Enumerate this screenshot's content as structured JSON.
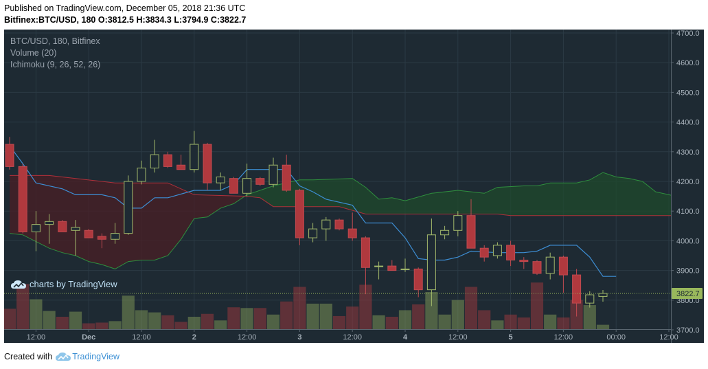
{
  "header": {
    "published": "Published on TradingView.com, December 05, 2018 21:36 UTC",
    "symbol": "Bitfinex:BTC/USD, 180",
    "o_label": "O:",
    "o_value": "3812.5",
    "h_label": "H:",
    "h_value": "3834.3",
    "l_label": "L:",
    "l_value": "3794.9",
    "c_label": "C:",
    "c_value": "3822.7"
  },
  "legend": {
    "line1": "BTC/USD, 180, Bitfinex",
    "line2": "Volume (20)",
    "line3": "Ichimoku (9, 26, 52, 26)"
  },
  "watermark": "charts by TradingView",
  "footer": {
    "created": "Created with",
    "brand": "TradingView"
  },
  "colors": {
    "background": "#1e2a33",
    "up": "#8da65a",
    "down": "#b0393e",
    "cloud_bull": "#1f4a2c",
    "cloud_bear": "#4a1f26",
    "conversion": "#3d8ed4",
    "last_price_tag": "#99b85c"
  },
  "chart_data": {
    "type": "candlestick",
    "y_axis": {
      "min": 3700,
      "max": 4700,
      "ticks": [
        4700,
        4600,
        4500,
        4400,
        4300,
        4200,
        4100,
        4000,
        3900,
        3800,
        3700
      ],
      "tick_labels": [
        "4700.0",
        "4600.0",
        "4500.0",
        "4400.0",
        "4300.0",
        "4200.0",
        "4100.0",
        "4000.0",
        "3900.0",
        "3800.0",
        "3700.0"
      ]
    },
    "x_axis": {
      "labels": [
        {
          "text": "12:00",
          "bar": 2
        },
        {
          "text": "Dec",
          "bar": 6
        },
        {
          "text": "12:00",
          "bar": 10
        },
        {
          "text": "2",
          "bar": 14
        },
        {
          "text": "12:00",
          "bar": 18
        },
        {
          "text": "3",
          "bar": 22
        },
        {
          "text": "12:00",
          "bar": 26
        },
        {
          "text": "4",
          "bar": 30
        },
        {
          "text": "12:00",
          "bar": 34
        },
        {
          "text": "5",
          "bar": 38
        },
        {
          "text": "12:00",
          "bar": 42
        },
        {
          "text": "00:00",
          "bar": 46
        },
        {
          "text": "12:00",
          "bar": 50
        }
      ]
    },
    "last_price": 3822.7,
    "candles": [
      {
        "o": 4325,
        "h": 4350,
        "l": 4240,
        "c": 4250,
        "v": 0.28
      },
      {
        "o": 4250,
        "h": 4260,
        "l": 4025,
        "c": 4030,
        "v": 0.62
      },
      {
        "o": 4030,
        "h": 4100,
        "l": 3965,
        "c": 4055,
        "v": 0.41
      },
      {
        "o": 4055,
        "h": 4090,
        "l": 3990,
        "c": 4065,
        "v": 0.25
      },
      {
        "o": 4065,
        "h": 4070,
        "l": 4030,
        "c": 4030,
        "v": 0.17
      },
      {
        "o": 4035,
        "h": 4070,
        "l": 3950,
        "c": 4045,
        "v": 0.24
      },
      {
        "o": 4035,
        "h": 4040,
        "l": 4010,
        "c": 4010,
        "v": 0.08
      },
      {
        "o": 4015,
        "h": 4025,
        "l": 3975,
        "c": 4005,
        "v": 0.09
      },
      {
        "o": 4005,
        "h": 4060,
        "l": 3990,
        "c": 4025,
        "v": 0.11
      },
      {
        "o": 4025,
        "h": 4220,
        "l": 4020,
        "c": 4200,
        "v": 0.46
      },
      {
        "o": 4200,
        "h": 4270,
        "l": 4190,
        "c": 4245,
        "v": 0.26
      },
      {
        "o": 4245,
        "h": 4340,
        "l": 4230,
        "c": 4290,
        "v": 0.23
      },
      {
        "o": 4290,
        "h": 4300,
        "l": 4245,
        "c": 4250,
        "v": 0.19
      },
      {
        "o": 4255,
        "h": 4290,
        "l": 4240,
        "c": 4240,
        "v": 0.1
      },
      {
        "o": 4240,
        "h": 4370,
        "l": 4230,
        "c": 4325,
        "v": 0.17
      },
      {
        "o": 4325,
        "h": 4330,
        "l": 4170,
        "c": 4195,
        "v": 0.21
      },
      {
        "o": 4195,
        "h": 4230,
        "l": 4170,
        "c": 4215,
        "v": 0.12
      },
      {
        "o": 4210,
        "h": 4215,
        "l": 4160,
        "c": 4160,
        "v": 0.3
      },
      {
        "o": 4160,
        "h": 4260,
        "l": 4150,
        "c": 4210,
        "v": 0.29
      },
      {
        "o": 4210,
        "h": 4215,
        "l": 4185,
        "c": 4190,
        "v": 0.29
      },
      {
        "o": 4190,
        "h": 4280,
        "l": 4180,
        "c": 4255,
        "v": 0.2
      },
      {
        "o": 4255,
        "h": 4290,
        "l": 4165,
        "c": 4170,
        "v": 0.38
      },
      {
        "o": 4170,
        "h": 4175,
        "l": 3985,
        "c": 4010,
        "v": 0.58
      },
      {
        "o": 4010,
        "h": 4060,
        "l": 3995,
        "c": 4040,
        "v": 0.35
      },
      {
        "o": 4040,
        "h": 4080,
        "l": 4000,
        "c": 4070,
        "v": 0.35
      },
      {
        "o": 4070,
        "h": 4075,
        "l": 4035,
        "c": 4040,
        "v": 0.18
      },
      {
        "o": 4040,
        "h": 4095,
        "l": 4000,
        "c": 4010,
        "v": 0.31
      },
      {
        "o": 4010,
        "h": 4015,
        "l": 3820,
        "c": 3910,
        "v": 0.61
      },
      {
        "o": 3915,
        "h": 3930,
        "l": 3870,
        "c": 3915,
        "v": 0.19
      },
      {
        "o": 3915,
        "h": 3935,
        "l": 3900,
        "c": 3900,
        "v": 0.17
      },
      {
        "o": 3905,
        "h": 3940,
        "l": 3895,
        "c": 3905,
        "v": 0.26
      },
      {
        "o": 3905,
        "h": 3910,
        "l": 3810,
        "c": 3835,
        "v": 0.34
      },
      {
        "o": 3835,
        "h": 4075,
        "l": 3780,
        "c": 4020,
        "v": 0.51
      },
      {
        "o": 4020,
        "h": 4050,
        "l": 4005,
        "c": 4035,
        "v": 0.2
      },
      {
        "o": 4035,
        "h": 4100,
        "l": 4015,
        "c": 4085,
        "v": 0.4
      },
      {
        "o": 4085,
        "h": 4140,
        "l": 3975,
        "c": 3975,
        "v": 0.58
      },
      {
        "o": 3975,
        "h": 3985,
        "l": 3930,
        "c": 3945,
        "v": 0.26
      },
      {
        "o": 3950,
        "h": 3995,
        "l": 3940,
        "c": 3985,
        "v": 0.12
      },
      {
        "o": 3985,
        "h": 4000,
        "l": 3915,
        "c": 3935,
        "v": 0.2
      },
      {
        "o": 3935,
        "h": 3945,
        "l": 3905,
        "c": 3930,
        "v": 0.16
      },
      {
        "o": 3930,
        "h": 3935,
        "l": 3885,
        "c": 3890,
        "v": 0.64
      },
      {
        "o": 3890,
        "h": 3960,
        "l": 3870,
        "c": 3945,
        "v": 0.2
      },
      {
        "o": 3945,
        "h": 3950,
        "l": 3825,
        "c": 3885,
        "v": 0.16
      },
      {
        "o": 3885,
        "h": 3905,
        "l": 3745,
        "c": 3790,
        "v": 0.4
      },
      {
        "o": 3790,
        "h": 3830,
        "l": 3775,
        "c": 3818,
        "v": 0.33
      },
      {
        "o": 3812.5,
        "h": 3834.3,
        "l": 3794.9,
        "c": 3822.7,
        "v": 0.06
      }
    ],
    "conversion_line": [
      [
        0,
        4320
      ],
      [
        1,
        4260
      ],
      [
        2,
        4195
      ],
      [
        4,
        4175
      ],
      [
        5,
        4155
      ],
      [
        7,
        4155
      ],
      [
        8,
        4145
      ],
      [
        9,
        4110
      ],
      [
        10,
        4110
      ],
      [
        11,
        4145
      ],
      [
        12,
        4145
      ],
      [
        14,
        4170
      ],
      [
        16,
        4170
      ],
      [
        17,
        4190
      ],
      [
        18,
        4240
      ],
      [
        21,
        4240
      ],
      [
        22,
        4185
      ],
      [
        23,
        4165
      ],
      [
        24,
        4140
      ],
      [
        26,
        4120
      ],
      [
        27,
        4060
      ],
      [
        29,
        4060
      ],
      [
        30,
        4010
      ],
      [
        31,
        3940
      ],
      [
        32,
        3935
      ],
      [
        33,
        3935
      ],
      [
        34,
        3945
      ],
      [
        35,
        3965
      ],
      [
        37,
        3960
      ],
      [
        39,
        3960
      ],
      [
        40,
        3965
      ],
      [
        41,
        3985
      ],
      [
        43,
        3985
      ],
      [
        44,
        3945
      ],
      [
        45,
        3880
      ],
      [
        46,
        3880
      ]
    ],
    "cloud_senkou_a": [
      [
        0,
        4025
      ],
      [
        1,
        4020
      ],
      [
        3,
        3975
      ],
      [
        4,
        3960
      ],
      [
        5,
        3950
      ],
      [
        6,
        3930
      ],
      [
        7,
        3920
      ],
      [
        8,
        3905
      ],
      [
        9,
        3930
      ],
      [
        10,
        3935
      ],
      [
        11,
        3935
      ],
      [
        12,
        3950
      ],
      [
        13,
        4005
      ],
      [
        14,
        4075
      ],
      [
        15,
        4080
      ],
      [
        16,
        4110
      ],
      [
        17,
        4125
      ],
      [
        18,
        4155
      ],
      [
        20,
        4185
      ],
      [
        22,
        4205
      ],
      [
        23,
        4205
      ],
      [
        26,
        4210
      ],
      [
        27,
        4180
      ],
      [
        28,
        4140
      ],
      [
        29,
        4145
      ],
      [
        30,
        4135
      ],
      [
        32,
        4160
      ],
      [
        34,
        4170
      ],
      [
        36,
        4160
      ],
      [
        37,
        4180
      ],
      [
        39,
        4185
      ],
      [
        40,
        4185
      ],
      [
        41,
        4195
      ],
      [
        43,
        4195
      ],
      [
        44,
        4205
      ],
      [
        45,
        4230
      ],
      [
        46,
        4215
      ],
      [
        47,
        4210
      ],
      [
        48,
        4200
      ],
      [
        49,
        4165
      ],
      [
        50,
        4155
      ],
      [
        51,
        4145
      ]
    ],
    "cloud_senkou_b": [
      [
        0,
        4220
      ],
      [
        3,
        4220
      ],
      [
        7,
        4200
      ],
      [
        8,
        4195
      ],
      [
        12,
        4195
      ],
      [
        14,
        4155
      ],
      [
        18,
        4150
      ],
      [
        19,
        4145
      ],
      [
        20,
        4115
      ],
      [
        25,
        4115
      ],
      [
        27,
        4090
      ],
      [
        37,
        4090
      ],
      [
        38,
        4085
      ],
      [
        51,
        4085
      ]
    ]
  }
}
